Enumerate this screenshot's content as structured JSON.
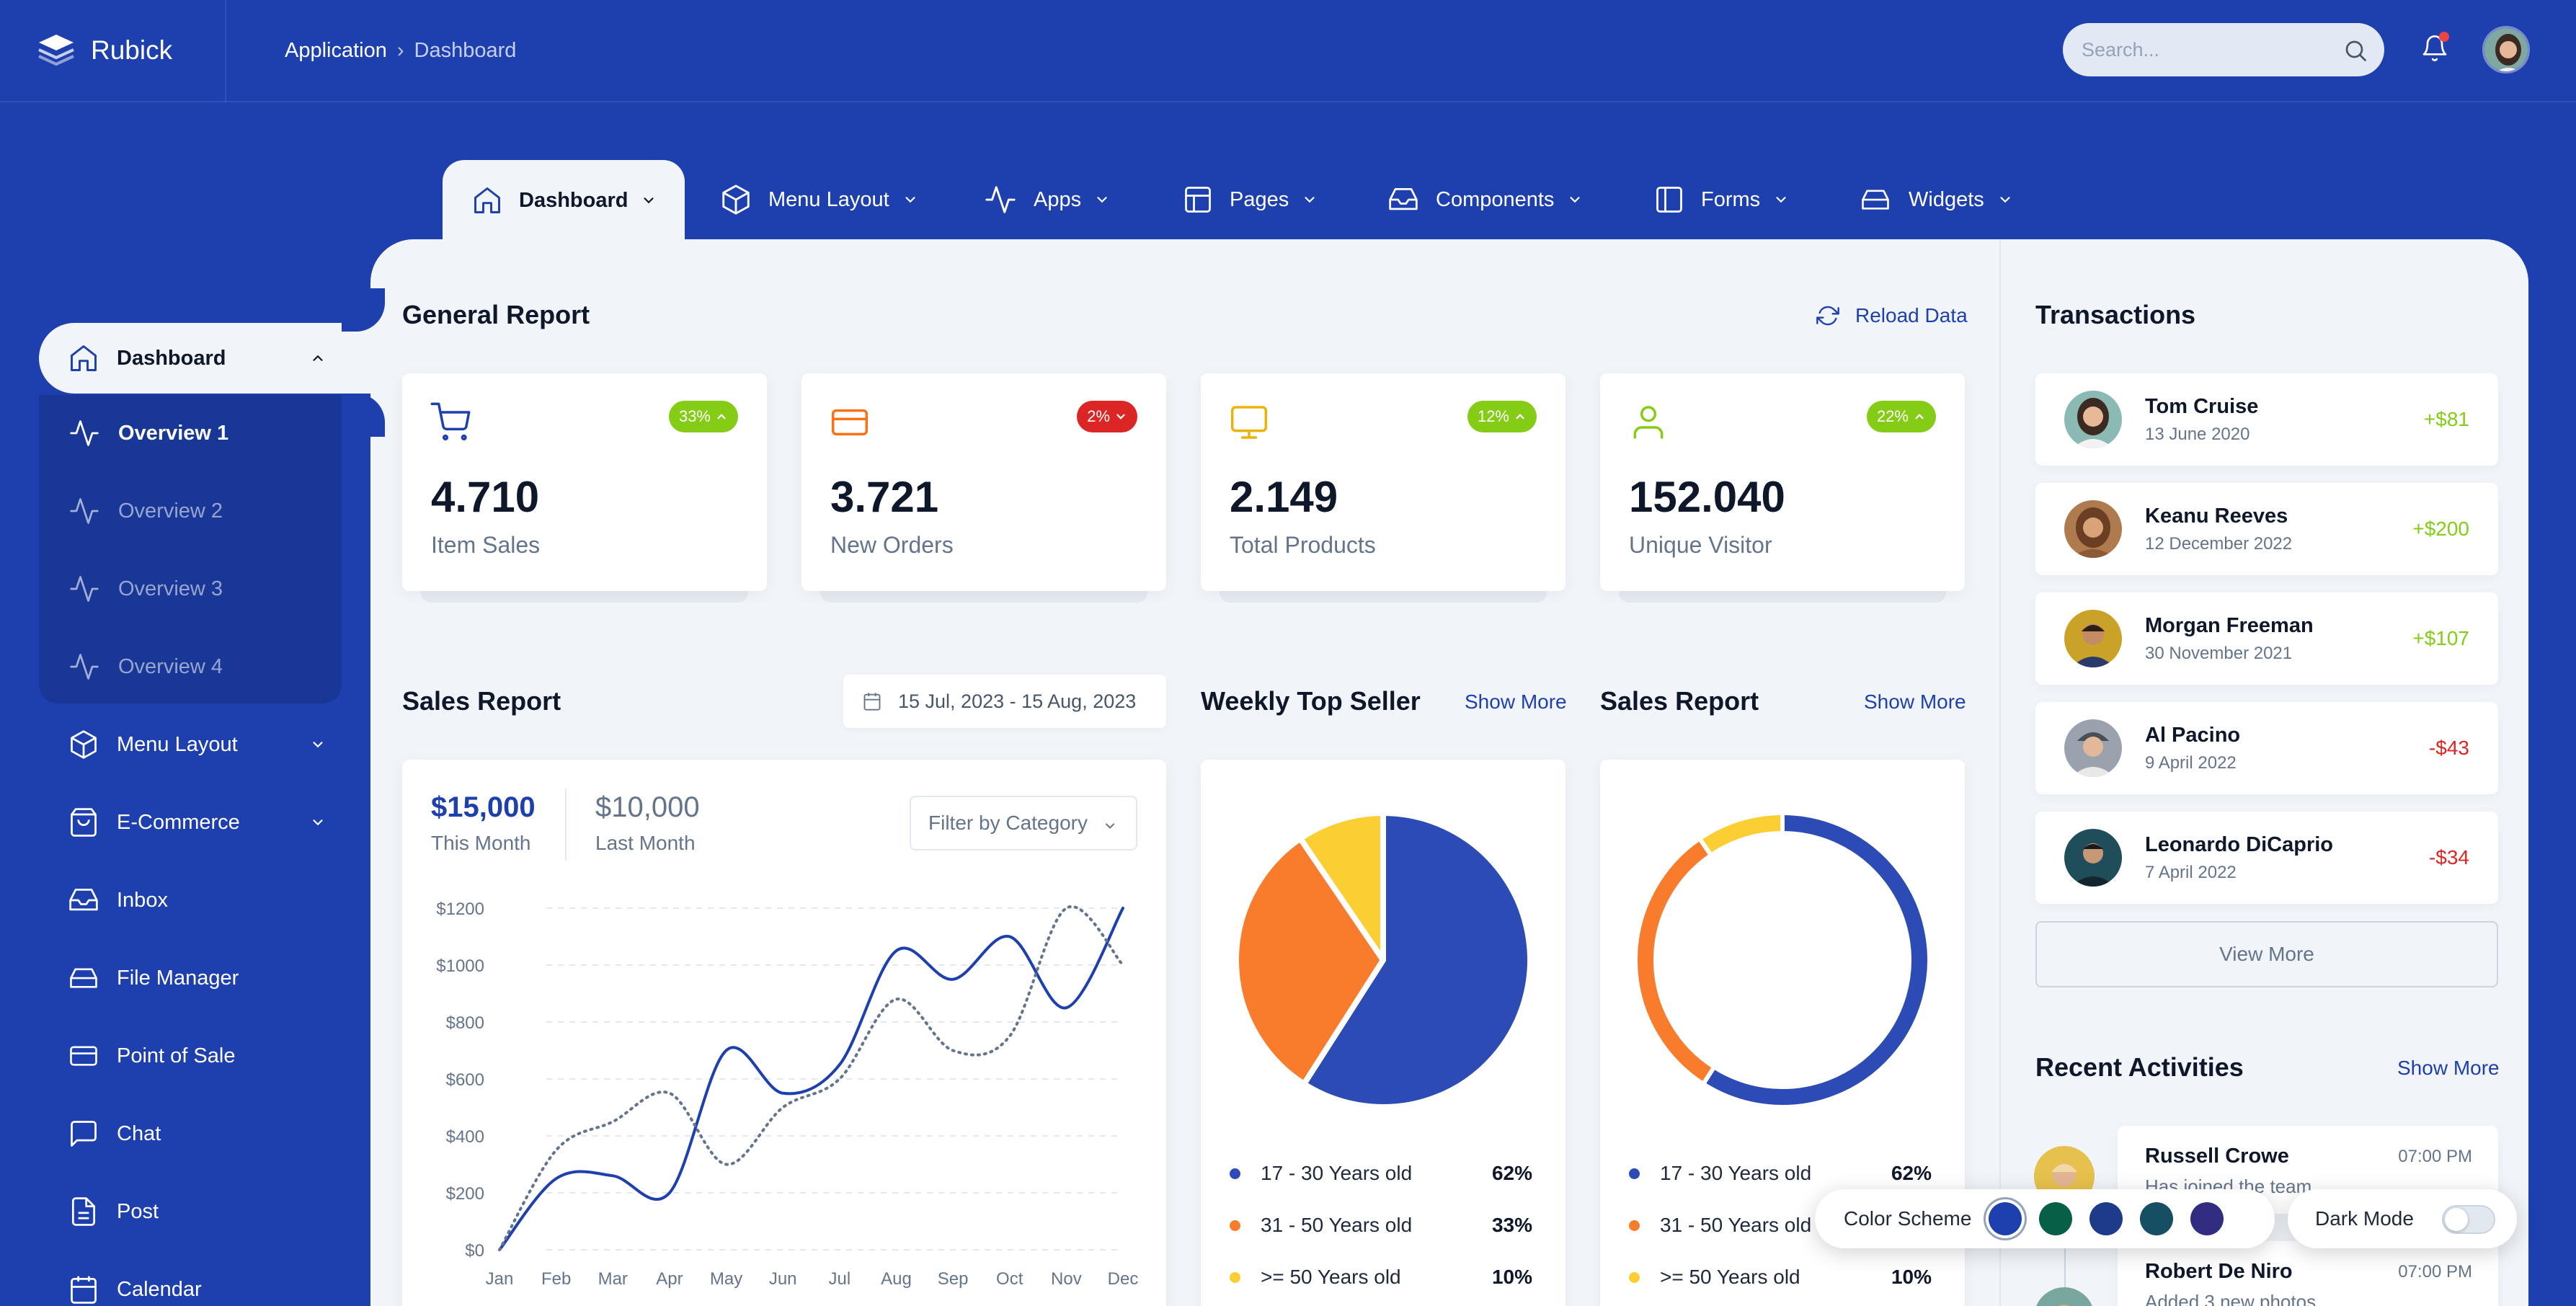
{
  "app": {
    "name": "Rubick"
  },
  "breadcrumb": {
    "root": "Application",
    "separator": "›",
    "current": "Dashboard"
  },
  "search": {
    "placeholder": "Search..."
  },
  "topnav": [
    {
      "label": "Dashboard",
      "icon": "home-icon",
      "active": true
    },
    {
      "label": "Menu Layout",
      "icon": "box-icon"
    },
    {
      "label": "Apps",
      "icon": "activity-icon"
    },
    {
      "label": "Pages",
      "icon": "layout-icon"
    },
    {
      "label": "Components",
      "icon": "inbox-icon"
    },
    {
      "label": "Forms",
      "icon": "sidebar-icon"
    },
    {
      "label": "Widgets",
      "icon": "hard-drive-icon"
    }
  ],
  "sidebar": {
    "active": {
      "label": "Dashboard",
      "icon": "home-icon"
    },
    "submenu": [
      {
        "label": "Overview 1",
        "active": true
      },
      {
        "label": "Overview 2"
      },
      {
        "label": "Overview 3"
      },
      {
        "label": "Overview 4"
      }
    ],
    "items": [
      {
        "label": "Menu Layout",
        "icon": "box-icon",
        "has_children": true
      },
      {
        "label": "E-Commerce",
        "icon": "shopping-bag-icon",
        "has_children": true
      },
      {
        "label": "Inbox",
        "icon": "inbox-icon"
      },
      {
        "label": "File Manager",
        "icon": "hard-drive-icon"
      },
      {
        "label": "Point of Sale",
        "icon": "credit-card-icon"
      },
      {
        "label": "Chat",
        "icon": "message-square-icon"
      },
      {
        "label": "Post",
        "icon": "file-text-icon"
      },
      {
        "label": "Calendar",
        "icon": "calendar-icon"
      }
    ]
  },
  "general_report": {
    "title": "General Report",
    "reload_label": "Reload Data",
    "stats": [
      {
        "value": "4.710",
        "label": "Item Sales",
        "badge": "33%",
        "trend": "up",
        "icon": "shopping-cart-icon",
        "color": "#1e40af"
      },
      {
        "value": "3.721",
        "label": "New Orders",
        "badge": "2%",
        "trend": "down",
        "icon": "credit-card-icon",
        "color": "#f97316"
      },
      {
        "value": "2.149",
        "label": "Total Products",
        "badge": "12%",
        "trend": "up",
        "icon": "monitor-icon",
        "color": "#eab308"
      },
      {
        "value": "152.040",
        "label": "Unique Visitor",
        "badge": "22%",
        "trend": "up",
        "icon": "user-icon",
        "color": "#84cc16"
      }
    ]
  },
  "sales_report": {
    "title": "Sales Report",
    "date_range": "15 Jul, 2023 - 15 Aug, 2023",
    "this_month_value": "$15,000",
    "this_month_label": "This Month",
    "last_month_value": "$10,000",
    "last_month_label": "Last Month",
    "filter_label": "Filter by Category"
  },
  "weekly_top_seller": {
    "title": "Weekly Top Seller",
    "show_more": "Show More"
  },
  "sales_report_2": {
    "title": "Sales Report",
    "show_more": "Show More"
  },
  "chart_data": [
    {
      "type": "line",
      "categories": [
        "Jan",
        "Feb",
        "Mar",
        "Apr",
        "May",
        "Jun",
        "Jul",
        "Aug",
        "Sep",
        "Oct",
        "Nov",
        "Dec"
      ],
      "y_ticks": [
        "$0",
        "$200",
        "$400",
        "$600",
        "$800",
        "$1000",
        "$1200"
      ],
      "ylim": [
        0,
        1200
      ],
      "series": [
        {
          "style": "solid",
          "color": "#1e40af",
          "values": [
            0,
            250,
            260,
            200,
            700,
            550,
            650,
            1050,
            950,
            1100,
            850,
            1200
          ]
        },
        {
          "style": "dotted",
          "color": "#64748b",
          "values": [
            0,
            350,
            450,
            550,
            300,
            500,
            600,
            880,
            700,
            750,
            1200,
            1000
          ]
        }
      ]
    },
    {
      "type": "pie",
      "labels": [
        "17 - 30 Years old",
        "31 - 50 Years old",
        ">= 50 Years old"
      ],
      "label_text": [
        "62%",
        "33%",
        "10%"
      ],
      "values": [
        62,
        33,
        10
      ],
      "colors": [
        "#2d4bb5",
        "#f97c2c",
        "#fbcf33"
      ]
    },
    {
      "type": "pie",
      "variant": "donut",
      "labels": [
        "17 - 30 Years old",
        "31 - 50 Years old",
        ">= 50 Years old"
      ],
      "label_text": [
        "62%",
        "33%",
        "10%"
      ],
      "values": [
        62,
        33,
        10
      ],
      "colors": [
        "#2d4bb5",
        "#f97c2c",
        "#fbcf33"
      ]
    }
  ],
  "transactions": {
    "title": "Transactions",
    "items": [
      {
        "name": "Tom Cruise",
        "date": "13 June 2020",
        "amount": "+$81",
        "positive": true
      },
      {
        "name": "Keanu Reeves",
        "date": "12 December 2022",
        "amount": "+$200",
        "positive": true
      },
      {
        "name": "Morgan Freeman",
        "date": "30 November 2021",
        "amount": "+$107",
        "positive": true
      },
      {
        "name": "Al Pacino",
        "date": "9 April 2022",
        "amount": "-$43",
        "positive": false
      },
      {
        "name": "Leonardo DiCaprio",
        "date": "7 April 2022",
        "amount": "-$34",
        "positive": false
      }
    ],
    "view_more": "View More"
  },
  "recent_activities": {
    "title": "Recent Activities",
    "show_more": "Show More",
    "items": [
      {
        "name": "Russell Crowe",
        "time": "07:00 PM",
        "desc": "Has joined the team"
      },
      {
        "name": "Robert De Niro",
        "time": "07:00 PM",
        "desc": "Added 3 new photos"
      }
    ]
  },
  "theme": {
    "color_scheme_label": "Color Scheme",
    "swatches": [
      "#1e40af",
      "#065f46",
      "#1e3a8a",
      "#164e63",
      "#312e81"
    ],
    "dark_mode_label": "Dark Mode",
    "dark_mode_on": false
  },
  "colors": {
    "primary": "#1e40af",
    "success": "#84cc16",
    "danger": "#dc2626",
    "orange": "#f97316",
    "yellow": "#eab308"
  }
}
